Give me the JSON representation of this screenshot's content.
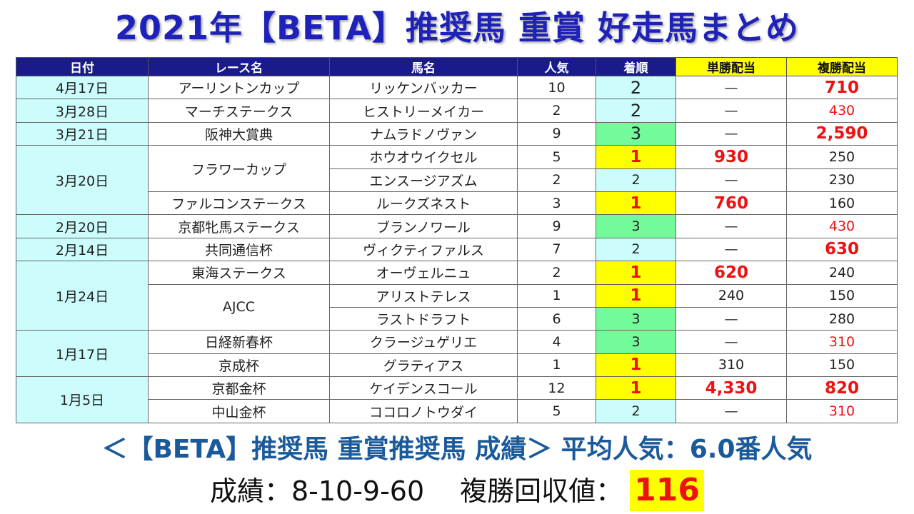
{
  "title": "2021年【BETA】推奨馬 重賞 好走馬まとめ",
  "headers": [
    "日付",
    "レース名",
    "馬名",
    "人気",
    "着順",
    "単勝配当",
    "複勝配当"
  ],
  "rows": [
    {
      "date": "4月17日",
      "race": "アーリントンカップ",
      "horse": "リッケンバッカー",
      "pop": "10",
      "rank": "2",
      "win": "—",
      "place": "710"
    },
    {
      "date": "3月28日",
      "race": "マーチステークス",
      "horse": "ヒストリーメイカー",
      "pop": "2",
      "rank": "2",
      "win": "—",
      "place": "430"
    },
    {
      "date": "3月21日",
      "race": "阪神大賞典",
      "horse": "ナムラドノヴァン",
      "pop": "9",
      "rank": "3",
      "win": "—",
      "place": "2,590"
    },
    {
      "date": "3月20日",
      "race": "フラワーカップ",
      "horse": "ホウオウイクセル",
      "pop": "5",
      "rank": "1",
      "win": "930",
      "place": "250"
    },
    {
      "date": "",
      "race": "",
      "horse": "エンスージアズム",
      "pop": "2",
      "rank": "2",
      "win": "—",
      "place": "230"
    },
    {
      "date": "",
      "race": "ファルコンステークス",
      "horse": "ルークズネスト",
      "pop": "3",
      "rank": "1",
      "win": "760",
      "place": "160"
    },
    {
      "date": "2月20日",
      "race": "京都牝馬ステークス",
      "horse": "ブランノワール",
      "pop": "9",
      "rank": "3",
      "win": "—",
      "place": "430"
    },
    {
      "date": "2月14日",
      "race": "共同通信杯",
      "horse": "ヴィクティファルス",
      "pop": "7",
      "rank": "2",
      "win": "—",
      "place": "630"
    },
    {
      "date": "1月24日",
      "race": "東海ステークス",
      "horse": "オーヴェルニュ",
      "pop": "2",
      "rank": "1",
      "win": "620",
      "place": "240"
    },
    {
      "date": "",
      "race": "AJCC",
      "horse": "アリストテレス",
      "pop": "1",
      "rank": "1",
      "win": "240",
      "place": "150"
    },
    {
      "date": "",
      "race": "",
      "horse": "ラストドラフト",
      "pop": "6",
      "rank": "3",
      "win": "—",
      "place": "280"
    },
    {
      "date": "1月17日",
      "race": "日経新春杯",
      "horse": "クラージュゲリエ",
      "pop": "4",
      "rank": "3",
      "win": "—",
      "place": "310"
    },
    {
      "date": "",
      "race": "京成杯",
      "horse": "グラティアス",
      "pop": "1",
      "rank": "1",
      "win": "310",
      "place": "150"
    },
    {
      "date": "1月5日",
      "race": "京都金杯",
      "horse": "ケイデンスコール",
      "pop": "12",
      "rank": "1",
      "win": "4,330",
      "place": "820"
    },
    {
      "date": "",
      "race": "中山金杯",
      "horse": "ココロノトウダイ",
      "pop": "5",
      "rank": "2",
      "win": "—",
      "place": "310"
    }
  ],
  "summary": {
    "line1": "＜【BETA】推奨馬 重賞推奨馬 成績＞ 平均人気：6.0番人気",
    "record_label": "成績：8-10-9-60",
    "return_label": "複勝回収値：",
    "return_value": "116"
  },
  "colors": {
    "title": "#1f22b8",
    "header_bg": "#1a1a8c",
    "payout_header_bg": "#ffff00",
    "rank_1": "#ffff00",
    "rank_2": "#ccfcfc",
    "rank_3": "#73fa9b",
    "highlight_red": "#ee1111",
    "summary_blue": "#1b5a9a"
  }
}
